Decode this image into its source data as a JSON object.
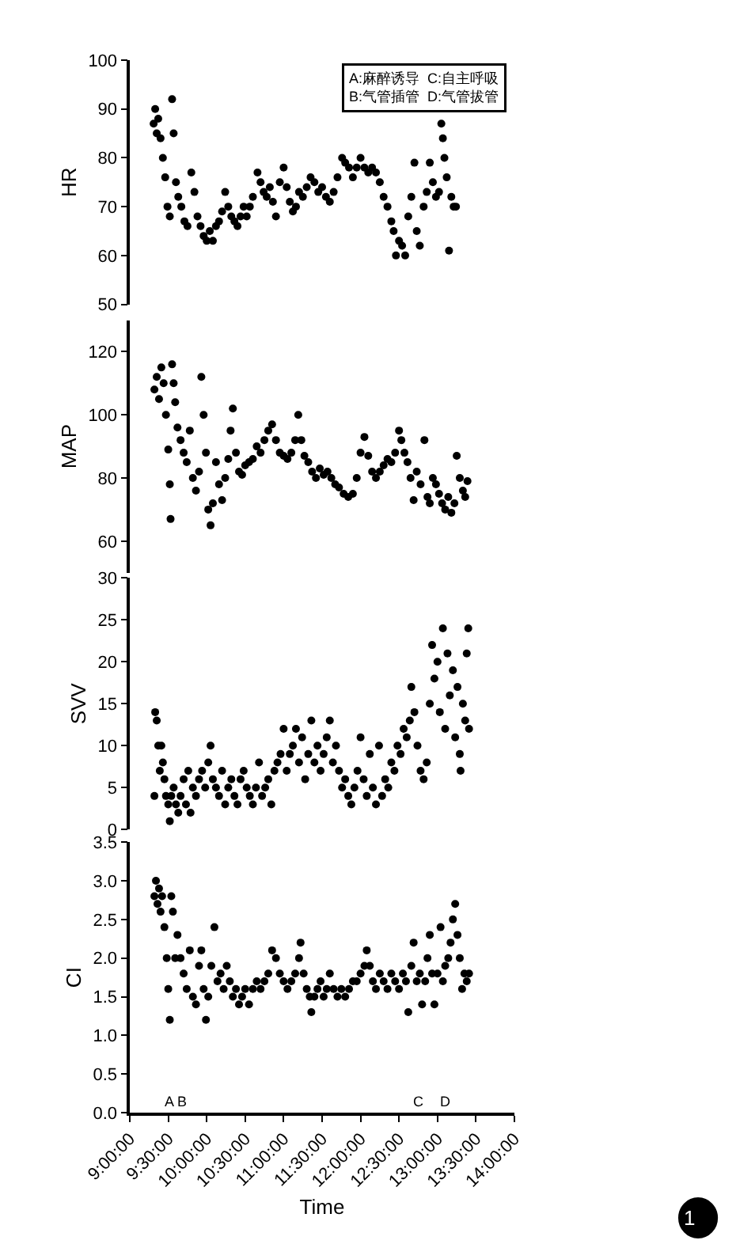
{
  "chart_data": [
    {
      "type": "scatter",
      "ylabel": "HR",
      "xlim": [
        9,
        14
      ],
      "ylim": [
        50,
        100
      ],
      "yticks": [
        50,
        60,
        70,
        80,
        90,
        100
      ],
      "tick_labels": "y",
      "marker": "circle",
      "annotations": [
        "A:麻醉诱导  C:自主呼吸\nB:气管插管  D:气管拔管"
      ],
      "series": [
        {
          "color": "#000000",
          "x": [
            9.31,
            9.33,
            9.35,
            9.37,
            9.4,
            9.43,
            9.46,
            9.49,
            9.52,
            9.55,
            9.57,
            9.6,
            9.63,
            9.67,
            9.71,
            9.75,
            9.8,
            9.84,
            9.88,
            9.92,
            9.96,
            10.0,
            10.04,
            10.08,
            10.12,
            10.16,
            10.2,
            10.24,
            10.28,
            10.32,
            10.36,
            10.4,
            10.44,
            10.48,
            10.52,
            10.56,
            10.6,
            10.66,
            10.7,
            10.74,
            10.78,
            10.82,
            10.86,
            10.9,
            10.95,
            11.0,
            11.04,
            11.08,
            11.12,
            11.16,
            11.2,
            11.25,
            11.3,
            11.35,
            11.4,
            11.45,
            11.5,
            11.55,
            11.6,
            11.65,
            11.7,
            11.76,
            11.8,
            11.85,
            11.9,
            11.95,
            12.0,
            12.05,
            12.1,
            12.15,
            12.2,
            12.25,
            12.3,
            12.35,
            12.4,
            12.43,
            12.46,
            12.5,
            12.54,
            12.58,
            12.62,
            12.66,
            12.7,
            12.73,
            12.77,
            12.82,
            12.86,
            12.9,
            12.94,
            12.98,
            13.02,
            13.05,
            13.07,
            13.09,
            13.12,
            13.15,
            13.18,
            13.21,
            13.24
          ],
          "values": [
            87,
            90,
            85,
            88,
            84,
            80,
            76,
            70,
            68,
            92,
            85,
            75,
            72,
            70,
            67,
            66,
            77,
            73,
            68,
            66,
            64,
            63,
            65,
            63,
            66,
            67,
            69,
            73,
            70,
            68,
            67,
            66,
            68,
            70,
            68,
            70,
            72,
            77,
            75,
            73,
            72,
            74,
            71,
            68,
            75,
            78,
            74,
            71,
            69,
            70,
            73,
            72,
            74,
            76,
            75,
            73,
            74,
            72,
            71,
            73,
            76,
            80,
            79,
            78,
            76,
            78,
            80,
            78,
            77,
            78,
            77,
            75,
            72,
            70,
            67,
            65,
            60,
            63,
            62,
            60,
            68,
            72,
            79,
            65,
            62,
            70,
            73,
            79,
            75,
            72,
            73,
            87,
            84,
            80,
            76,
            61,
            72,
            70,
            70
          ]
        }
      ]
    },
    {
      "type": "scatter",
      "ylabel": "MAP",
      "xlim": [
        9,
        14
      ],
      "ylim": [
        50,
        130
      ],
      "yticks": [
        60,
        80,
        100,
        120
      ],
      "tick_labels": "y",
      "marker": "circle",
      "series": [
        {
          "color": "#000000",
          "x": [
            9.32,
            9.35,
            9.38,
            9.41,
            9.44,
            9.47,
            9.5,
            9.52,
            9.53,
            9.55,
            9.57,
            9.59,
            9.62,
            9.66,
            9.7,
            9.74,
            9.78,
            9.82,
            9.86,
            9.9,
            9.93,
            9.96,
            9.99,
            10.02,
            10.05,
            10.08,
            10.12,
            10.16,
            10.2,
            10.24,
            10.28,
            10.31,
            10.34,
            10.38,
            10.42,
            10.46,
            10.5,
            10.55,
            10.6,
            10.65,
            10.7,
            10.75,
            10.8,
            10.85,
            10.9,
            10.95,
            11.0,
            11.05,
            11.1,
            11.15,
            11.19,
            11.23,
            11.27,
            11.32,
            11.37,
            11.42,
            11.47,
            11.52,
            11.57,
            11.62,
            11.67,
            11.72,
            11.78,
            11.84,
            11.9,
            11.95,
            12.0,
            12.05,
            12.1,
            12.15,
            12.2,
            12.25,
            12.3,
            12.35,
            12.4,
            12.45,
            12.5,
            12.53,
            12.57,
            12.61,
            12.65,
            12.69,
            12.73,
            12.78,
            12.83,
            12.87,
            12.9,
            12.94,
            12.98,
            13.02,
            13.06,
            13.1,
            13.14,
            13.18,
            13.22,
            13.25,
            13.29,
            13.33,
            13.36,
            13.39
          ],
          "values": [
            108,
            112,
            105,
            115,
            110,
            100,
            89,
            78,
            67,
            116,
            110,
            104,
            96,
            92,
            88,
            85,
            95,
            80,
            76,
            82,
            112,
            100,
            88,
            70,
            65,
            72,
            85,
            78,
            73,
            80,
            86,
            95,
            102,
            88,
            82,
            81,
            84,
            85,
            86,
            90,
            88,
            92,
            95,
            97,
            92,
            88,
            87,
            86,
            88,
            92,
            100,
            92,
            87,
            85,
            82,
            80,
            83,
            81,
            82,
            80,
            78,
            77,
            75,
            74,
            75,
            80,
            88,
            93,
            87,
            82,
            80,
            82,
            84,
            86,
            85,
            88,
            95,
            92,
            88,
            85,
            80,
            73,
            82,
            78,
            92,
            74,
            72,
            80,
            78,
            75,
            72,
            70,
            74,
            69,
            72,
            87,
            80,
            76,
            74,
            79
          ]
        }
      ]
    },
    {
      "type": "scatter",
      "ylabel": "SVV",
      "xlim": [
        9,
        14
      ],
      "ylim": [
        0,
        30
      ],
      "yticks": [
        0,
        5,
        10,
        15,
        20,
        25,
        30
      ],
      "tick_labels": "y",
      "marker": "circle",
      "series": [
        {
          "color": "#000000",
          "x": [
            9.32,
            9.33,
            9.35,
            9.37,
            9.39,
            9.41,
            9.43,
            9.45,
            9.47,
            9.5,
            9.52,
            9.54,
            9.57,
            9.6,
            9.63,
            9.66,
            9.7,
            9.73,
            9.76,
            9.79,
            9.82,
            9.86,
            9.9,
            9.94,
            9.98,
            10.02,
            10.05,
            10.08,
            10.12,
            10.16,
            10.2,
            10.24,
            10.28,
            10.32,
            10.36,
            10.4,
            10.44,
            10.48,
            10.52,
            10.56,
            10.6,
            10.64,
            10.68,
            10.72,
            10.76,
            10.8,
            10.84,
            10.88,
            10.92,
            10.96,
            11.0,
            11.04,
            11.08,
            11.12,
            11.16,
            11.2,
            11.24,
            11.28,
            11.32,
            11.36,
            11.4,
            11.44,
            11.48,
            11.52,
            11.56,
            11.6,
            11.64,
            11.68,
            11.72,
            11.76,
            11.8,
            11.84,
            11.88,
            11.92,
            11.96,
            12.0,
            12.04,
            12.08,
            12.12,
            12.16,
            12.2,
            12.24,
            12.28,
            12.32,
            12.36,
            12.4,
            12.44,
            12.48,
            12.52,
            12.56,
            12.6,
            12.64,
            12.66,
            12.7,
            12.74,
            12.78,
            12.82,
            12.86,
            12.9,
            12.93,
            12.96,
            13.0,
            13.03,
            13.07,
            13.1,
            13.13,
            13.16,
            13.2,
            13.23,
            13.26,
            13.29,
            13.3,
            13.33,
            13.36,
            13.38,
            13.4,
            13.41
          ],
          "values": [
            4,
            14,
            13,
            10,
            7,
            10,
            8,
            6,
            4,
            3,
            1,
            4,
            5,
            3,
            2,
            4,
            6,
            3,
            7,
            2,
            5,
            4,
            6,
            7,
            5,
            8,
            10,
            6,
            5,
            4,
            7,
            3,
            5,
            6,
            4,
            3,
            6,
            7,
            5,
            4,
            3,
            5,
            8,
            4,
            5,
            6,
            3,
            7,
            8,
            9,
            12,
            7,
            9,
            10,
            12,
            8,
            11,
            6,
            9,
            13,
            8,
            10,
            7,
            9,
            11,
            13,
            8,
            10,
            7,
            5,
            6,
            4,
            3,
            5,
            7,
            11,
            6,
            4,
            9,
            5,
            3,
            10,
            4,
            6,
            5,
            8,
            7,
            10,
            9,
            12,
            11,
            13,
            17,
            14,
            10,
            7,
            6,
            8,
            15,
            22,
            18,
            20,
            14,
            24,
            12,
            21,
            16,
            19,
            11,
            17,
            9,
            7,
            15,
            13,
            21,
            24,
            12
          ]
        }
      ]
    },
    {
      "type": "scatter",
      "ylabel": "CI",
      "xlabel": "Time",
      "xlim": [
        9,
        14
      ],
      "ylim": [
        0,
        3.5
      ],
      "marker": "circle",
      "yticks": [
        {
          "value": 0,
          "label": "0.0"
        },
        {
          "value": 0.5,
          "label": "0.5"
        },
        {
          "value": 1,
          "label": "1.0"
        },
        {
          "value": 1.5,
          "label": "1.5"
        },
        {
          "value": 2,
          "label": "2.0"
        },
        {
          "value": 2.5,
          "label": "2.5"
        },
        {
          "value": 3,
          "label": "3.0"
        },
        {
          "value": 3.5,
          "label": "3.5"
        }
      ],
      "xticks": [
        {
          "value": 9,
          "label": "9:00:00"
        },
        {
          "value": 9.5,
          "label": "9:30:00"
        },
        {
          "value": 10,
          "label": "10:00:00"
        },
        {
          "value": 10.5,
          "label": "10:30:00"
        },
        {
          "value": 11,
          "label": "11:00:00"
        },
        {
          "value": 11.5,
          "label": "11:30:00"
        },
        {
          "value": 12,
          "label": "12:00:00"
        },
        {
          "value": 12.5,
          "label": "12:30:00"
        },
        {
          "value": 13,
          "label": "13:00:00"
        },
        {
          "value": 13.5,
          "label": "13:30:00"
        },
        {
          "value": 14,
          "label": "14:00:00"
        }
      ],
      "annotations": [
        "A",
        "B",
        "C",
        "D",
        "1"
      ],
      "series": [
        {
          "color": "#000000",
          "x": [
            9.32,
            9.34,
            9.36,
            9.38,
            9.4,
            9.42,
            9.45,
            9.48,
            9.5,
            9.52,
            9.54,
            9.56,
            9.59,
            9.62,
            9.66,
            9.7,
            9.74,
            9.78,
            9.82,
            9.86,
            9.9,
            9.93,
            9.96,
            9.99,
            10.02,
            10.06,
            10.1,
            10.14,
            10.18,
            10.22,
            10.26,
            10.3,
            10.34,
            10.38,
            10.42,
            10.46,
            10.5,
            10.55,
            10.6,
            10.65,
            10.7,
            10.75,
            10.8,
            10.85,
            10.9,
            10.95,
            11.0,
            11.05,
            11.1,
            11.15,
            11.2,
            11.22,
            11.26,
            11.3,
            11.34,
            11.36,
            11.4,
            11.44,
            11.48,
            11.52,
            11.56,
            11.6,
            11.65,
            11.7,
            11.75,
            11.8,
            11.85,
            11.9,
            11.95,
            12.0,
            12.05,
            12.08,
            12.12,
            12.16,
            12.2,
            12.25,
            12.3,
            12.35,
            12.4,
            12.45,
            12.5,
            12.55,
            12.59,
            12.62,
            12.66,
            12.69,
            12.73,
            12.77,
            12.8,
            12.84,
            12.87,
            12.9,
            12.93,
            12.96,
            13.0,
            13.04,
            13.07,
            13.1,
            13.14,
            13.17,
            13.2,
            13.23,
            13.26,
            13.29,
            13.32,
            13.35,
            13.38,
            13.41
          ],
          "values": [
            2.8,
            3.0,
            2.7,
            2.9,
            2.6,
            2.8,
            2.4,
            2.0,
            1.6,
            1.2,
            2.8,
            2.6,
            2.0,
            2.3,
            2.0,
            1.8,
            1.6,
            2.1,
            1.5,
            1.4,
            1.9,
            2.1,
            1.6,
            1.2,
            1.5,
            1.9,
            2.4,
            1.7,
            1.8,
            1.6,
            1.9,
            1.7,
            1.5,
            1.6,
            1.4,
            1.5,
            1.6,
            1.4,
            1.6,
            1.7,
            1.6,
            1.7,
            1.8,
            2.1,
            2.0,
            1.8,
            1.7,
            1.6,
            1.7,
            1.8,
            2.0,
            2.2,
            1.8,
            1.6,
            1.5,
            1.3,
            1.5,
            1.6,
            1.7,
            1.5,
            1.6,
            1.8,
            1.6,
            1.5,
            1.6,
            1.5,
            1.6,
            1.7,
            1.7,
            1.8,
            1.9,
            2.1,
            1.9,
            1.7,
            1.6,
            1.8,
            1.7,
            1.6,
            1.8,
            1.7,
            1.6,
            1.8,
            1.7,
            1.3,
            1.9,
            2.2,
            1.7,
            1.8,
            1.4,
            1.7,
            2.0,
            2.3,
            1.8,
            1.4,
            1.8,
            2.4,
            1.7,
            1.9,
            2.0,
            2.2,
            2.5,
            2.7,
            2.3,
            2.0,
            1.6,
            1.8,
            1.7,
            1.8
          ]
        }
      ]
    }
  ]
}
